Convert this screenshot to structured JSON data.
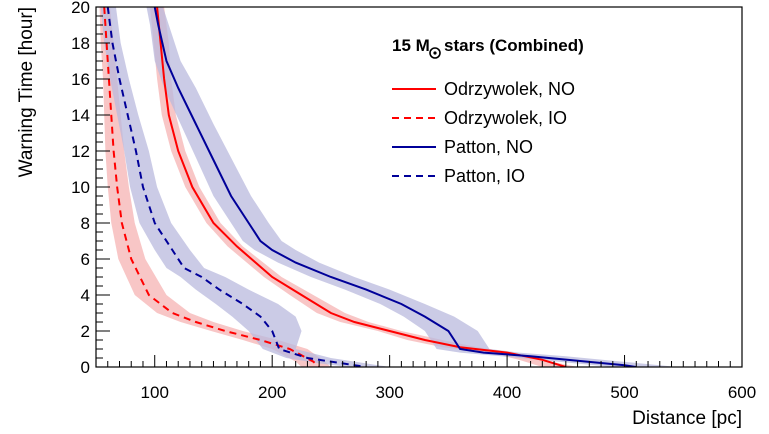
{
  "chart_data": {
    "type": "line",
    "title": "15 M",
    "title_suffix": "stars (Combined)",
    "title_symbol": "sun-symbol",
    "xlabel": "Distance [pc]",
    "ylabel": "Warning Time [hour]",
    "xlim": [
      50,
      600
    ],
    "ylim": [
      0,
      20
    ],
    "x_major_ticks": [
      100,
      200,
      300,
      400,
      500,
      600
    ],
    "y_major_ticks": [
      0,
      2,
      4,
      6,
      8,
      10,
      12,
      14,
      16,
      18,
      20
    ],
    "x_minor_step": 10,
    "y_minor_step": 0.5,
    "grid": false,
    "legend_position": "top-right",
    "series": [
      {
        "name": "Odrzywolek, NO",
        "color": "#ff0000",
        "band_color": "#f5b3b3",
        "dash": "solid",
        "points": [
          [
            102,
            20
          ],
          [
            105,
            18
          ],
          [
            108,
            16
          ],
          [
            112,
            14
          ],
          [
            120,
            12
          ],
          [
            132,
            10
          ],
          [
            150,
            8
          ],
          [
            170,
            6.7
          ],
          [
            200,
            5
          ],
          [
            225,
            4
          ],
          [
            250,
            3
          ],
          [
            270,
            2.5
          ],
          [
            300,
            2
          ],
          [
            330,
            1.5
          ],
          [
            360,
            1.1
          ],
          [
            400,
            0.8
          ],
          [
            430,
            0.4
          ],
          [
            450,
            0
          ]
        ],
        "band_lower": [
          [
            108,
            20
          ],
          [
            112,
            18
          ],
          [
            114,
            16
          ],
          [
            118,
            14
          ],
          [
            126,
            12
          ],
          [
            138,
            10
          ],
          [
            156,
            8
          ],
          [
            175,
            6.7
          ],
          [
            208,
            5
          ],
          [
            235,
            4
          ],
          [
            262,
            3
          ],
          [
            282,
            2.5
          ],
          [
            310,
            2
          ],
          [
            345,
            1.5
          ],
          [
            375,
            1.1
          ],
          [
            405,
            0.8
          ],
          [
            430,
            0.4
          ],
          [
            460,
            0
          ]
        ],
        "band_upper": [
          [
            96,
            20
          ],
          [
            99,
            18
          ],
          [
            102,
            16
          ],
          [
            106,
            14
          ],
          [
            114,
            12
          ],
          [
            126,
            10
          ],
          [
            144,
            8
          ],
          [
            162,
            6.7
          ],
          [
            193,
            5
          ],
          [
            215,
            4
          ],
          [
            238,
            3
          ],
          [
            258,
            2.5
          ],
          [
            290,
            2
          ],
          [
            315,
            1.5
          ],
          [
            345,
            1.1
          ],
          [
            385,
            0.8
          ],
          [
            410,
            0.4
          ],
          [
            430,
            0
          ]
        ]
      },
      {
        "name": "Odrzywolek, IO",
        "color": "#ff0000",
        "band_color": "#f5b3b3",
        "dash": "dashed",
        "points": [
          [
            57,
            20
          ],
          [
            59,
            18
          ],
          [
            61,
            16
          ],
          [
            63,
            14
          ],
          [
            65,
            12
          ],
          [
            68,
            10
          ],
          [
            72,
            8
          ],
          [
            80,
            6
          ],
          [
            95,
            4
          ],
          [
            115,
            3
          ],
          [
            135,
            2.5
          ],
          [
            160,
            2
          ],
          [
            190,
            1.5
          ],
          [
            215,
            1
          ],
          [
            235,
            0.3
          ],
          [
            240,
            0
          ]
        ],
        "band_lower": [
          [
            62,
            20
          ],
          [
            65,
            18
          ],
          [
            68,
            16
          ],
          [
            71,
            14
          ],
          [
            74,
            12
          ],
          [
            78,
            10
          ],
          [
            83,
            8
          ],
          [
            92,
            6
          ],
          [
            110,
            4
          ],
          [
            130,
            3
          ],
          [
            150,
            2.5
          ],
          [
            175,
            2
          ],
          [
            205,
            1.5
          ],
          [
            230,
            1
          ],
          [
            245,
            0.3
          ],
          [
            250,
            0
          ]
        ],
        "band_upper": [
          [
            53,
            20
          ],
          [
            54,
            18
          ],
          [
            56,
            16
          ],
          [
            57,
            14
          ],
          [
            58,
            12
          ],
          [
            60,
            10
          ],
          [
            63,
            8
          ],
          [
            69,
            6
          ],
          [
            83,
            4
          ],
          [
            102,
            3
          ],
          [
            122,
            2.5
          ],
          [
            148,
            2
          ],
          [
            175,
            1.5
          ],
          [
            200,
            1
          ],
          [
            220,
            0.3
          ],
          [
            225,
            0
          ]
        ]
      },
      {
        "name": "Patton, NO",
        "color": "#000099",
        "band_color": "#b9b9dd",
        "dash": "solid",
        "points": [
          [
            100,
            20
          ],
          [
            103,
            19
          ],
          [
            110,
            17
          ],
          [
            120,
            15.5
          ],
          [
            135,
            13.5
          ],
          [
            150,
            11.5
          ],
          [
            165,
            9.5
          ],
          [
            180,
            8
          ],
          [
            190,
            7
          ],
          [
            200,
            6.5
          ],
          [
            220,
            5.8
          ],
          [
            250,
            5
          ],
          [
            280,
            4.3
          ],
          [
            310,
            3.5
          ],
          [
            330,
            2.8
          ],
          [
            350,
            2
          ],
          [
            360,
            1
          ],
          [
            380,
            0.8
          ],
          [
            420,
            0.6
          ],
          [
            460,
            0.35
          ],
          [
            500,
            0.1
          ],
          [
            510,
            0
          ]
        ],
        "band_lower": [
          [
            107,
            20
          ],
          [
            112,
            19
          ],
          [
            122,
            17
          ],
          [
            135,
            15.5
          ],
          [
            150,
            13.5
          ],
          [
            166,
            11.5
          ],
          [
            182,
            9.5
          ],
          [
            197,
            8
          ],
          [
            208,
            7
          ],
          [
            220,
            6.5
          ],
          [
            240,
            5.8
          ],
          [
            270,
            5
          ],
          [
            300,
            4.3
          ],
          [
            330,
            3.5
          ],
          [
            355,
            2.8
          ],
          [
            375,
            2
          ],
          [
            385,
            1
          ],
          [
            410,
            0.8
          ],
          [
            450,
            0.6
          ],
          [
            490,
            0.35
          ],
          [
            530,
            0.1
          ],
          [
            545,
            0
          ]
        ],
        "band_upper": [
          [
            93,
            20
          ],
          [
            96,
            19
          ],
          [
            100,
            17
          ],
          [
            108,
            15.5
          ],
          [
            122,
            13.5
          ],
          [
            136,
            11.5
          ],
          [
            150,
            9.5
          ],
          [
            165,
            8
          ],
          [
            175,
            7
          ],
          [
            185,
            6.5
          ],
          [
            205,
            5.8
          ],
          [
            233,
            5
          ],
          [
            262,
            4.3
          ],
          [
            292,
            3.5
          ],
          [
            312,
            2.8
          ],
          [
            330,
            2
          ],
          [
            340,
            1
          ],
          [
            360,
            0.8
          ],
          [
            395,
            0.6
          ],
          [
            435,
            0.35
          ],
          [
            475,
            0.1
          ],
          [
            490,
            0
          ]
        ]
      },
      {
        "name": "Patton, IO",
        "color": "#000099",
        "band_color": "#b9b9dd",
        "dash": "dashed",
        "points": [
          [
            60,
            20
          ],
          [
            64,
            18
          ],
          [
            70,
            16
          ],
          [
            77,
            14
          ],
          [
            84,
            12
          ],
          [
            90,
            10
          ],
          [
            100,
            8
          ],
          [
            115,
            6.5
          ],
          [
            125,
            5.5
          ],
          [
            140,
            5
          ],
          [
            155,
            4.3
          ],
          [
            175,
            3.5
          ],
          [
            190,
            2.8
          ],
          [
            200,
            2
          ],
          [
            206,
            1
          ],
          [
            230,
            0.5
          ],
          [
            260,
            0.2
          ],
          [
            280,
            0
          ]
        ],
        "band_lower": [
          [
            67,
            20
          ],
          [
            71,
            18
          ],
          [
            78,
            16
          ],
          [
            86,
            14
          ],
          [
            95,
            12
          ],
          [
            102,
            10
          ],
          [
            114,
            8
          ],
          [
            130,
            6.5
          ],
          [
            142,
            5.5
          ],
          [
            160,
            5
          ],
          [
            180,
            4.3
          ],
          [
            205,
            3.5
          ],
          [
            220,
            2.8
          ],
          [
            225,
            2
          ],
          [
            220,
            1
          ],
          [
            250,
            0.5
          ],
          [
            280,
            0.2
          ],
          [
            300,
            0
          ]
        ],
        "band_upper": [
          [
            54,
            20
          ],
          [
            57,
            18
          ],
          [
            62,
            16
          ],
          [
            68,
            14
          ],
          [
            74,
            12
          ],
          [
            79,
            10
          ],
          [
            87,
            8
          ],
          [
            100,
            6.5
          ],
          [
            110,
            5.5
          ],
          [
            122,
            5
          ],
          [
            135,
            4.3
          ],
          [
            152,
            3.5
          ],
          [
            166,
            2.8
          ],
          [
            180,
            2
          ],
          [
            192,
            1
          ],
          [
            212,
            0.5
          ],
          [
            240,
            0.2
          ],
          [
            265,
            0
          ]
        ]
      }
    ]
  }
}
